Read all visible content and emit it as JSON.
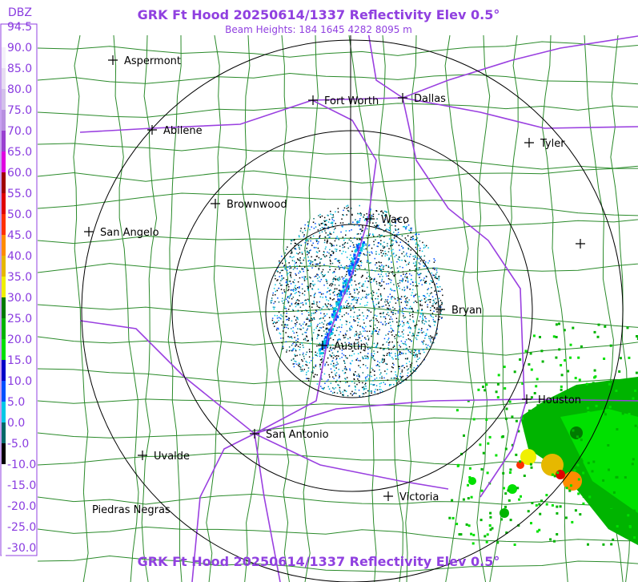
{
  "header": {
    "title": "GRK Ft Hood 20250614/1337 Reflectivity Elev 0.5°",
    "subtitle": "Beam Heights: 184 1645 4282 8095 m"
  },
  "legend": {
    "unit": "DBZ",
    "items": [
      {
        "label": "94.5",
        "color": "#ffffff"
      },
      {
        "label": "90.0",
        "color": "#f4f0fa"
      },
      {
        "label": "85.0",
        "color": "#e6dcf2"
      },
      {
        "label": "80.0",
        "color": "#d2c0ea"
      },
      {
        "label": "75.0",
        "color": "#b890e0"
      },
      {
        "label": "70.0",
        "color": "#9a40d0"
      },
      {
        "label": "65.0",
        "color": "#e000e0"
      },
      {
        "label": "60.0",
        "color": "#a00000"
      },
      {
        "label": "55.0",
        "color": "#e00000"
      },
      {
        "label": "50.0",
        "color": "#ff3000"
      },
      {
        "label": "45.0",
        "color": "#ff8c00"
      },
      {
        "label": "40.0",
        "color": "#e6b800"
      },
      {
        "label": "35.0",
        "color": "#f0f000"
      },
      {
        "label": "30.0",
        "color": "#007a00"
      },
      {
        "label": "25.0",
        "color": "#00b400"
      },
      {
        "label": "20.0",
        "color": "#00e000"
      },
      {
        "label": "15.0",
        "color": "#0000c8"
      },
      {
        "label": "10.0",
        "color": "#0050ff"
      },
      {
        "label": "5.0",
        "color": "#00c8e6"
      },
      {
        "label": "0.0",
        "color": "#006868"
      },
      {
        "label": "-5.0",
        "color": "#000000"
      },
      {
        "label": "-10.0",
        "color": "#ffffff"
      },
      {
        "label": "-15.0",
        "color": "#ffffff"
      },
      {
        "label": "-20.0",
        "color": "#ffffff"
      },
      {
        "label": "-25.0",
        "color": "#ffffff"
      },
      {
        "label": "-30.0",
        "color": "#ffffff"
      }
    ]
  },
  "cities": [
    "Aspermont",
    "Fort Worth",
    "Dallas",
    "Abilene",
    "Tyler",
    "Brownwood",
    "Waco",
    "San Angelo",
    "Bryan",
    "Austin",
    "Houston",
    "San Antonio",
    "Uvalde",
    "Victoria",
    "Piedras Negras"
  ],
  "footer": {
    "title": "GRK Ft Hood 20250614/1337 Reflectivity Elev 0.5°"
  }
}
